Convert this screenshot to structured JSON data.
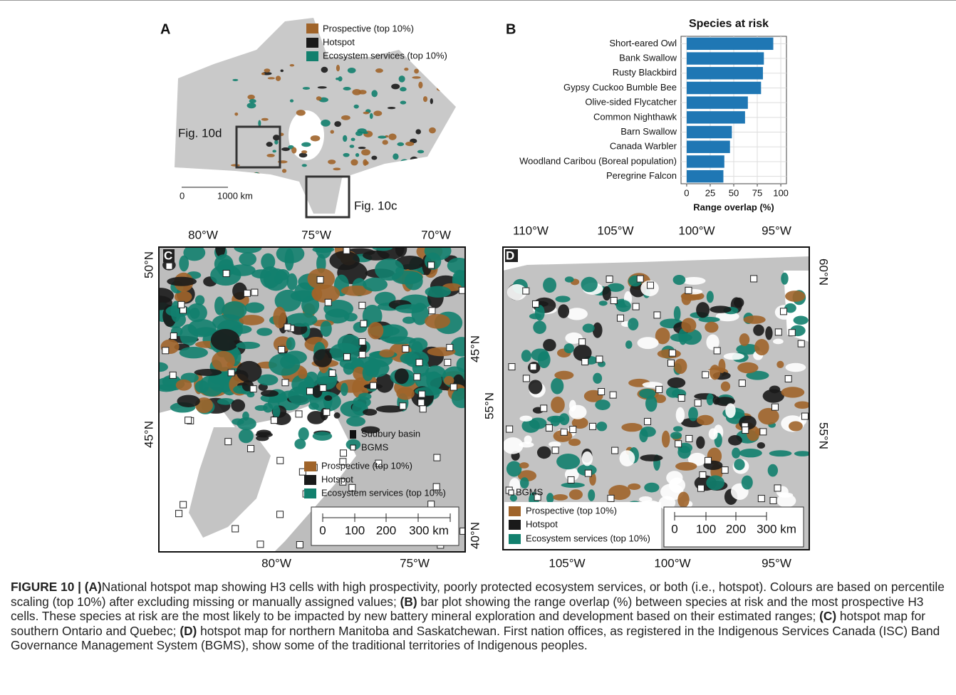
{
  "figure": {
    "panel_a": {
      "label": "A",
      "legend": [
        "Prospective (top 10%)",
        "Hotspot",
        "Ecosystem services (top 10%)"
      ],
      "inset_d": "Fig. 10d",
      "inset_c": "Fig. 10c",
      "scale": [
        "0",
        "1000 km"
      ]
    },
    "panel_b": {
      "label": "B"
    },
    "panel_c": {
      "label": "C",
      "top_ticks": [
        "80°W",
        "75°W",
        "70°W"
      ],
      "left_ticks": [
        "50°N",
        "45°N"
      ],
      "right_ticks": [
        "45°N",
        "40°N"
      ],
      "bottom_ticks": [
        "80°W",
        "75°W"
      ],
      "site_legend": [
        "Sudbury basin",
        "BGMS"
      ],
      "legend": [
        "Prospective (top 10%)",
        "Hotspot",
        "Ecosystem services (top 10%)"
      ],
      "scale": [
        "0",
        "100",
        "200",
        "300 km"
      ]
    },
    "panel_d": {
      "label": "D",
      "top_ticks": [
        "110°W",
        "105°W",
        "100°W",
        "95°W"
      ],
      "right_ticks": [
        "60°N",
        "55°N"
      ],
      "left_ticks": [
        "55°N"
      ],
      "bottom_ticks": [
        "105°W",
        "100°W",
        "95°W"
      ],
      "site_legend": [
        "BGMS"
      ],
      "legend": [
        "Prospective (top 10%)",
        "Hotspot",
        "Ecosystem services (top 10%)"
      ],
      "scale": [
        "0",
        "100",
        "200",
        "300 km"
      ]
    },
    "caption": [
      "FIGURE 10 |",
      "(A)",
      "National hotspot map showing H3 cells with high prospectivity, poorly protected ecosystem services, or both (i.e., hotspot). Colours are based on percentile scaling (top 10%) after excluding missing or manually assigned values;",
      "(B)",
      "bar plot showing the range overlap (%) between species at risk and the most prospective H3 cells. These species at risk are the most likely to be impacted by new battery mineral exploration and development based on their estimated ranges;",
      "(C)",
      "hotspot map for southern Ontario and Quebec;",
      "(D)",
      "hotspot map for northern Manitoba and Saskatchewan. First nation offices, as registered in the Indigenous Services Canada (ISC) Band Governance Management System (BGMS), show some of the traditional territories of Indigenous peoples."
    ]
  },
  "chart_data": {
    "type": "bar",
    "orientation": "horizontal",
    "title": "Species at risk",
    "x_label": "Range overlap (%)",
    "categories": [
      "Short-eared Owl",
      "Bank Swallow",
      "Rusty Blackbird",
      "Gypsy Cuckoo Bumble Bee",
      "Olive-sided Flycatcher",
      "Common Nighthawk",
      "Barn Swallow",
      "Canada Warbler",
      "Woodland Caribou (Boreal population)",
      "Peregrine Falcon"
    ],
    "values": [
      92,
      82,
      81,
      79,
      65,
      62,
      48,
      46,
      40,
      39
    ],
    "color": "#1f77b4",
    "xlim": [
      -6,
      106
    ],
    "xticks": [
      0,
      25,
      50,
      75,
      100
    ],
    "grid": true
  }
}
